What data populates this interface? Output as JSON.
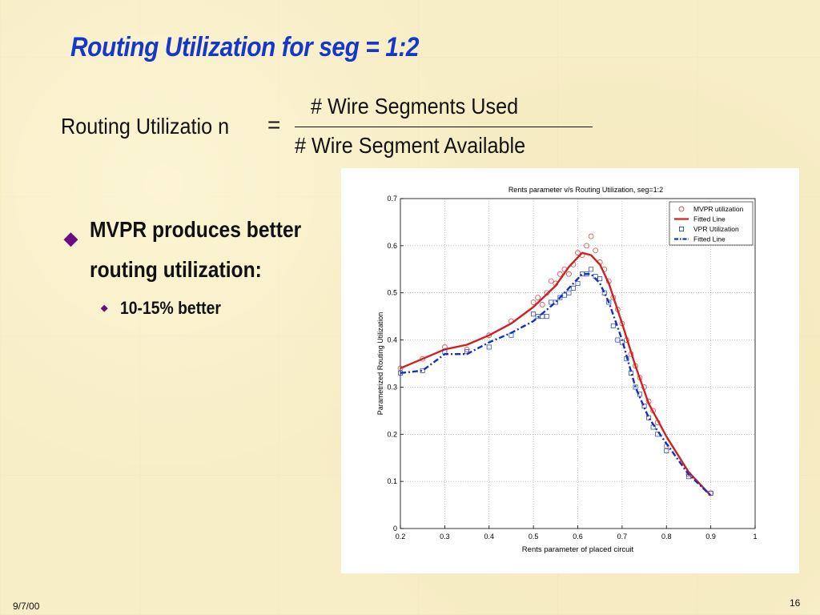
{
  "slide": {
    "title": "Routing Utilization for seg = 1:2",
    "formula": {
      "lhs": "Routing Utilizatio n",
      "equals": "=",
      "numerator": "# Wire Segments Used",
      "denominator": "# Wire Segment Available"
    },
    "bullets": [
      {
        "text": "MVPR produces better routing utilization:",
        "marker": "diamond"
      },
      {
        "text": "10-15% better",
        "marker": "small-diamond"
      }
    ],
    "footer": {
      "date": "9/7/00",
      "page": "16"
    },
    "colors": {
      "title": "#1538c8",
      "bullet_marker": "#6a0d84",
      "mvpr": "#d02020",
      "vpr": "#1030c0"
    }
  },
  "chart_data": {
    "type": "line",
    "title": "Rents parameter v/s Routing Utilization, seg=1:2",
    "xlabel": "Rents parameter of placed circuit",
    "ylabel": "Parametrized Routing Utilization",
    "xlim": [
      0.2,
      1
    ],
    "ylim": [
      0,
      0.7
    ],
    "xticks": [
      "0.2",
      "0.3",
      "0.4",
      "0.5",
      "0.6",
      "0.7",
      "0.8",
      "0.9",
      "1"
    ],
    "yticks": [
      "0",
      "0.1",
      "0.2",
      "0.3",
      "0.4",
      "0.5",
      "0.6",
      "0.7"
    ],
    "grid": true,
    "legend_position": "top-right",
    "series": [
      {
        "name": "MVPR utilization",
        "kind": "scatter",
        "marker": "circle",
        "color": "#d02020",
        "points": [
          [
            0.2,
            0.34
          ],
          [
            0.25,
            0.36
          ],
          [
            0.3,
            0.385
          ],
          [
            0.35,
            0.38
          ],
          [
            0.4,
            0.41
          ],
          [
            0.45,
            0.44
          ],
          [
            0.5,
            0.48
          ],
          [
            0.51,
            0.49
          ],
          [
            0.52,
            0.475
          ],
          [
            0.53,
            0.5
          ],
          [
            0.54,
            0.525
          ],
          [
            0.55,
            0.52
          ],
          [
            0.56,
            0.54
          ],
          [
            0.57,
            0.55
          ],
          [
            0.58,
            0.54
          ],
          [
            0.59,
            0.56
          ],
          [
            0.6,
            0.585
          ],
          [
            0.61,
            0.58
          ],
          [
            0.62,
            0.6
          ],
          [
            0.63,
            0.62
          ],
          [
            0.64,
            0.59
          ],
          [
            0.65,
            0.565
          ],
          [
            0.66,
            0.55
          ],
          [
            0.67,
            0.525
          ],
          [
            0.68,
            0.49
          ],
          [
            0.69,
            0.465
          ],
          [
            0.7,
            0.435
          ],
          [
            0.71,
            0.4
          ],
          [
            0.72,
            0.37
          ],
          [
            0.73,
            0.345
          ],
          [
            0.74,
            0.32
          ],
          [
            0.75,
            0.3
          ],
          [
            0.76,
            0.27
          ],
          [
            0.77,
            0.25
          ],
          [
            0.78,
            0.225
          ],
          [
            0.8,
            0.175
          ],
          [
            0.85,
            0.115
          ],
          [
            0.9,
            0.075
          ]
        ]
      },
      {
        "name": "Fitted Line",
        "kind": "line",
        "style": "solid",
        "color": "#d02020",
        "points": [
          [
            0.2,
            0.34
          ],
          [
            0.3,
            0.38
          ],
          [
            0.35,
            0.39
          ],
          [
            0.4,
            0.41
          ],
          [
            0.45,
            0.435
          ],
          [
            0.5,
            0.47
          ],
          [
            0.55,
            0.515
          ],
          [
            0.58,
            0.555
          ],
          [
            0.61,
            0.585
          ],
          [
            0.63,
            0.58
          ],
          [
            0.65,
            0.56
          ],
          [
            0.67,
            0.52
          ],
          [
            0.7,
            0.435
          ],
          [
            0.73,
            0.345
          ],
          [
            0.76,
            0.265
          ],
          [
            0.8,
            0.195
          ],
          [
            0.85,
            0.12
          ],
          [
            0.9,
            0.07
          ]
        ]
      },
      {
        "name": "VPR Utilization",
        "kind": "scatter",
        "marker": "square",
        "color": "#1030c0",
        "points": [
          [
            0.2,
            0.33
          ],
          [
            0.25,
            0.335
          ],
          [
            0.3,
            0.375
          ],
          [
            0.35,
            0.375
          ],
          [
            0.4,
            0.385
          ],
          [
            0.45,
            0.41
          ],
          [
            0.5,
            0.455
          ],
          [
            0.51,
            0.45
          ],
          [
            0.52,
            0.45
          ],
          [
            0.53,
            0.45
          ],
          [
            0.54,
            0.48
          ],
          [
            0.55,
            0.48
          ],
          [
            0.56,
            0.49
          ],
          [
            0.57,
            0.495
          ],
          [
            0.58,
            0.5
          ],
          [
            0.59,
            0.51
          ],
          [
            0.6,
            0.52
          ],
          [
            0.61,
            0.54
          ],
          [
            0.62,
            0.54
          ],
          [
            0.63,
            0.55
          ],
          [
            0.64,
            0.535
          ],
          [
            0.65,
            0.53
          ],
          [
            0.66,
            0.5
          ],
          [
            0.67,
            0.48
          ],
          [
            0.68,
            0.43
          ],
          [
            0.69,
            0.4
          ],
          [
            0.7,
            0.395
          ],
          [
            0.71,
            0.36
          ],
          [
            0.72,
            0.33
          ],
          [
            0.73,
            0.3
          ],
          [
            0.74,
            0.285
          ],
          [
            0.75,
            0.26
          ],
          [
            0.76,
            0.235
          ],
          [
            0.77,
            0.215
          ],
          [
            0.78,
            0.2
          ],
          [
            0.8,
            0.165
          ],
          [
            0.85,
            0.11
          ],
          [
            0.9,
            0.075
          ]
        ]
      },
      {
        "name": "Fitted Line",
        "kind": "line",
        "style": "dashdot",
        "color": "#1030c0",
        "points": [
          [
            0.2,
            0.33
          ],
          [
            0.25,
            0.335
          ],
          [
            0.3,
            0.37
          ],
          [
            0.35,
            0.37
          ],
          [
            0.4,
            0.395
          ],
          [
            0.45,
            0.415
          ],
          [
            0.5,
            0.44
          ],
          [
            0.55,
            0.48
          ],
          [
            0.58,
            0.51
          ],
          [
            0.61,
            0.54
          ],
          [
            0.63,
            0.54
          ],
          [
            0.65,
            0.52
          ],
          [
            0.67,
            0.48
          ],
          [
            0.7,
            0.4
          ],
          [
            0.73,
            0.3
          ],
          [
            0.76,
            0.235
          ],
          [
            0.8,
            0.18
          ],
          [
            0.85,
            0.115
          ],
          [
            0.9,
            0.07
          ]
        ]
      }
    ]
  }
}
